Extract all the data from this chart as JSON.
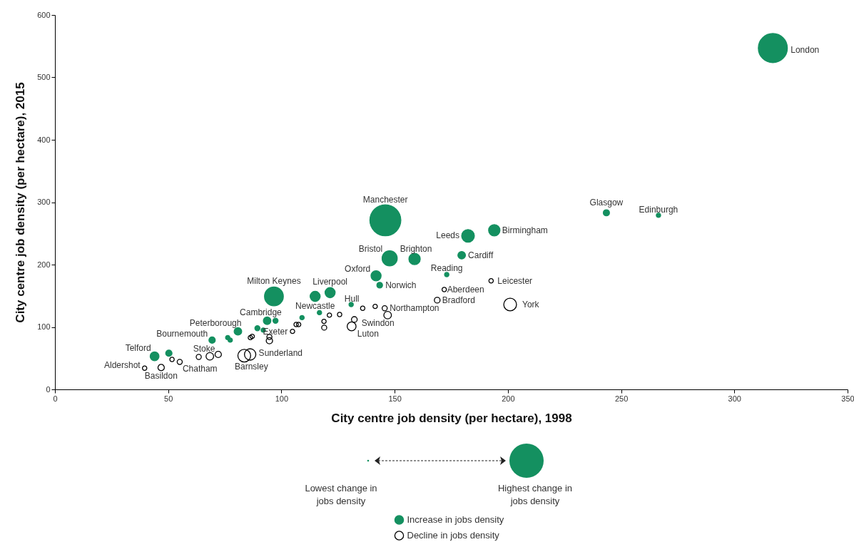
{
  "chart_data": {
    "type": "bubble",
    "xlabel": "City centre job density (per hectare), 1998",
    "ylabel": "City centre job density (per hectare), 2015",
    "xlim": [
      0,
      350
    ],
    "xticks": [
      0,
      50,
      100,
      150,
      200,
      250,
      300,
      350
    ],
    "ylim": [
      0,
      600
    ],
    "yticks": [
      0,
      100,
      200,
      300,
      400,
      500,
      600
    ],
    "grid": false,
    "legend": "bottom",
    "marker": "circle",
    "series": [
      {
        "name": "Increase in jobs density",
        "color": "#149060",
        "x": [
          317,
          145.9,
          243.5,
          266.5,
          194,
          182.4,
          179.6,
          147.8,
          158.8,
          173,
          141.8,
          143.4,
          96.7,
          121.5,
          114.9,
          116.8,
          130.8,
          109.1,
          93.7,
          97.4,
          89.4,
          92,
          80.8,
          76.3,
          77.4,
          69.4,
          50.3,
          44
        ],
        "values": [
          547,
          271,
          283,
          279,
          255,
          246,
          215,
          210,
          209,
          184,
          182,
          167,
          149,
          155,
          149,
          123,
          136,
          115,
          110,
          110,
          98,
          95,
          93,
          83,
          79,
          79,
          58,
          53
        ],
        "sizes": [
          0.88,
          1,
          0.04,
          0.02,
          0.135,
          0.17,
          0.06,
          0.24,
          0.135,
          0.02,
          0.107,
          0.034,
          0.37,
          0.107,
          0.107,
          0.02,
          0.02,
          0.02,
          0.06,
          0.027,
          0.027,
          0.02,
          0.06,
          0.02,
          0.02,
          0.042,
          0.042,
          0.082
        ]
      },
      {
        "name": "Decline in jobs density",
        "color": "#000000",
        "x": [
          39.6,
          46.9,
          51.7,
          55.1,
          63.5,
          68.4,
          72.1,
          83.6,
          86.2,
          86.3,
          87.1,
          94.7,
          94.7,
          104.9,
          106.5,
          107.6,
          118.8,
          118.9,
          121.2,
          125.7,
          132.2,
          131,
          135.9,
          141.4,
          145.6,
          146.9,
          171.9,
          168.8,
          192.6,
          201
        ],
        "values": [
          34,
          35,
          48,
          44,
          52,
          53,
          56,
          54,
          56,
          83,
          85,
          84,
          78,
          93,
          104,
          104,
          109,
          99,
          119,
          120,
          112,
          101,
          130,
          133,
          130,
          119,
          160,
          143,
          174,
          136
        ],
        "sizes": [
          0.02,
          0.042,
          0.02,
          0.027,
          0.027,
          0.06,
          0.042,
          0.17,
          0.135,
          0.02,
          0.02,
          0.027,
          0.042,
          0.02,
          0.02,
          0.02,
          0.02,
          0.027,
          0.02,
          0.02,
          0.034,
          0.082,
          0.02,
          0.02,
          0.027,
          0.06,
          0.02,
          0.034,
          0.02,
          0.17
        ]
      }
    ],
    "annotations": [
      {
        "text": "London",
        "x": 317,
        "y": 547
      },
      {
        "text": "Manchester",
        "x": 145.9,
        "y": 271
      },
      {
        "text": "Glasgow",
        "x": 243.5,
        "y": 283
      },
      {
        "text": "Edinburgh",
        "x": 266.5,
        "y": 279
      },
      {
        "text": "Birmingham",
        "x": 194,
        "y": 255
      },
      {
        "text": "Leeds",
        "x": 182.4,
        "y": 246
      },
      {
        "text": "Cardiff",
        "x": 179.6,
        "y": 215
      },
      {
        "text": "Bristol",
        "x": 147.8,
        "y": 210
      },
      {
        "text": "Brighton",
        "x": 158.8,
        "y": 209
      },
      {
        "text": "Reading",
        "x": 173,
        "y": 184
      },
      {
        "text": "Oxford",
        "x": 141.8,
        "y": 182
      },
      {
        "text": "Norwich",
        "x": 143.4,
        "y": 167
      },
      {
        "text": "Milton Keynes",
        "x": 96.7,
        "y": 149
      },
      {
        "text": "Liverpool",
        "x": 121.5,
        "y": 155
      },
      {
        "text": "Newcastle",
        "x": 114.9,
        "y": 149
      },
      {
        "text": "Hull",
        "x": 130.8,
        "y": 136
      },
      {
        "text": "Cambridge",
        "x": 93.7,
        "y": 110
      },
      {
        "text": "Peterborough",
        "x": 80.8,
        "y": 93
      },
      {
        "text": "Bournemouth",
        "x": 69.4,
        "y": 79
      },
      {
        "text": "Telford",
        "x": 44,
        "y": 53
      },
      {
        "text": "Aldershot",
        "x": 39.6,
        "y": 34
      },
      {
        "text": "Basildon",
        "x": 46.9,
        "y": 35
      },
      {
        "text": "Chatham",
        "x": 55.1,
        "y": 44
      },
      {
        "text": "Stoke",
        "x": 68.4,
        "y": 53
      },
      {
        "text": "Barnsley",
        "x": 83.6,
        "y": 54
      },
      {
        "text": "Sunderland",
        "x": 86.2,
        "y": 56
      },
      {
        "text": "Exeter",
        "x": 94.7,
        "y": 84
      },
      {
        "text": "Swindon",
        "x": 132.2,
        "y": 112
      },
      {
        "text": "Luton",
        "x": 131,
        "y": 101
      },
      {
        "text": "Northampton",
        "x": 145.6,
        "y": 130
      },
      {
        "text": "Aberdeen",
        "x": 171.9,
        "y": 160
      },
      {
        "text": "Bradford",
        "x": 168.8,
        "y": 143
      },
      {
        "text": "Leicester",
        "x": 192.6,
        "y": 174
      },
      {
        "text": "York",
        "x": 201,
        "y": 136
      },
      "Lowest change in jobs density",
      "Highest change in jobs density"
    ]
  }
}
